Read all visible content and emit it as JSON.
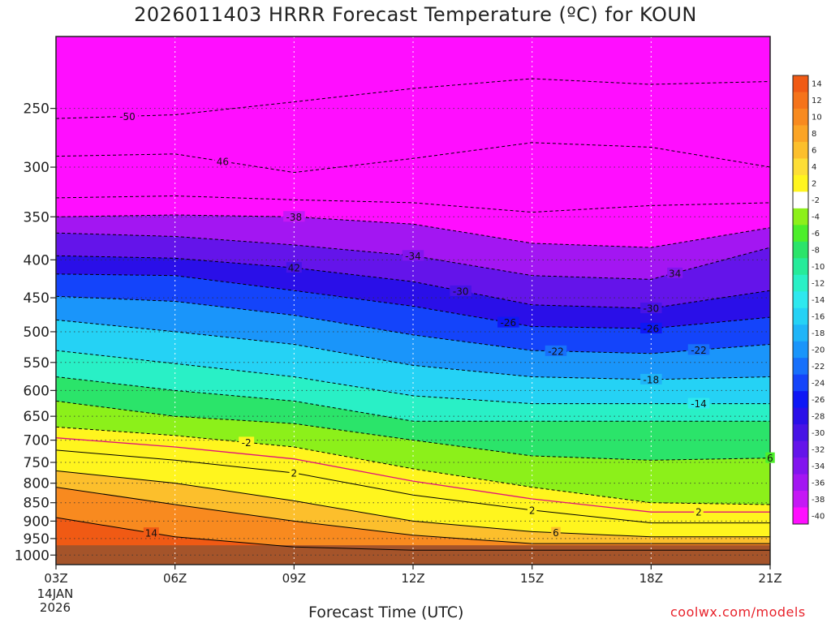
{
  "chart_data": {
    "type": "heatmap",
    "title": "2026011403 HRRR Forecast Temperature (ºC) for KOUN",
    "xlabel": "Forecast Time (UTC)",
    "ylabel": "",
    "x_ticks": [
      "03Z",
      "06Z",
      "09Z",
      "12Z",
      "15Z",
      "18Z",
      "21Z"
    ],
    "x_start_date": "14JAN",
    "x_start_year": "2026",
    "y_ticks": [
      250,
      300,
      350,
      400,
      450,
      500,
      550,
      600,
      650,
      700,
      750,
      800,
      850,
      900,
      950,
      1000
    ],
    "y_scale": "log",
    "y_reversed": true,
    "y_range": [
      200,
      1030
    ],
    "grid": true,
    "colorbar_labels": [
      14,
      12,
      10,
      8,
      6,
      4,
      2,
      -2,
      -4,
      -6,
      -8,
      -10,
      -12,
      -14,
      -16,
      -18,
      -20,
      -22,
      -24,
      -26,
      -28,
      -30,
      -32,
      -34,
      -36,
      -38,
      -40
    ],
    "colorbar_colors": [
      "#f05a14",
      "#f5731a",
      "#f88a1f",
      "#fba425",
      "#fcbf2c",
      "#fdde36",
      "#fff51e",
      "#ffffff",
      "#8cf01a",
      "#4cee2a",
      "#2be46a",
      "#26eb9a",
      "#29f0c6",
      "#2ee8ee",
      "#25d2f5",
      "#1fb5f8",
      "#1a95fa",
      "#1770fb",
      "#1444fa",
      "#0e17f5",
      "#2a0fe8",
      "#4713e6",
      "#6414ea",
      "#8214ee",
      "#a316f2",
      "#c518f5",
      "#ff0eff"
    ],
    "profiles": {
      "hours": [
        "03Z",
        "06Z",
        "09Z",
        "12Z",
        "15Z",
        "18Z",
        "21Z"
      ],
      "isotherms": [
        {
          "temp": -50,
          "pressure": [
            258,
            255,
            245,
            235,
            228,
            232,
            230
          ]
        },
        {
          "temp": -46,
          "pressure": [
            290,
            288,
            305,
            292,
            278,
            282,
            300
          ]
        },
        {
          "temp": -42,
          "pressure": [
            330,
            328,
            332,
            335,
            345,
            338,
            335
          ]
        },
        {
          "temp": -38,
          "pressure": [
            350,
            348,
            350,
            358,
            380,
            385,
            362
          ]
        },
        {
          "temp": -34,
          "pressure": [
            368,
            372,
            382,
            395,
            420,
            425,
            385
          ]
        },
        {
          "temp": -30,
          "pressure": [
            395,
            398,
            410,
            428,
            460,
            465,
            440
          ]
        },
        {
          "temp": -26,
          "pressure": [
            418,
            420,
            440,
            462,
            492,
            495,
            478
          ]
        },
        {
          "temp": -22,
          "pressure": [
            448,
            455,
            475,
            505,
            530,
            535,
            520
          ]
        },
        {
          "temp": -18,
          "pressure": [
            482,
            500,
            520,
            555,
            575,
            580,
            575
          ]
        },
        {
          "temp": -14,
          "pressure": [
            530,
            552,
            575,
            610,
            625,
            625,
            625
          ]
        },
        {
          "temp": -10,
          "pressure": [
            575,
            600,
            620,
            660,
            660,
            660,
            660
          ]
        },
        {
          "temp": -6,
          "pressure": [
            620,
            650,
            665,
            700,
            735,
            745,
            740
          ]
        },
        {
          "temp": -2,
          "pressure": [
            672,
            690,
            715,
            765,
            810,
            850,
            855
          ]
        },
        {
          "temp": 0,
          "pressure": [
            695,
            715,
            742,
            795,
            840,
            875,
            875
          ]
        },
        {
          "temp": 2,
          "pressure": [
            722,
            745,
            775,
            830,
            870,
            905,
            905
          ]
        },
        {
          "temp": 6,
          "pressure": [
            770,
            800,
            845,
            900,
            930,
            945,
            945
          ]
        },
        {
          "temp": 10,
          "pressure": [
            810,
            855,
            900,
            940,
            965,
            965,
            965
          ]
        },
        {
          "temp": 14,
          "pressure": [
            890,
            945,
            975,
            985,
            985,
            985,
            985
          ]
        }
      ],
      "surface_pressure": 970
    },
    "contour_labels": [
      "-50",
      "46",
      "-38",
      "42",
      "-34",
      "-30",
      "-26",
      "-22",
      "34",
      "-30",
      "-26",
      "-22",
      "-18",
      "-14",
      "-2",
      "6",
      "2",
      "2",
      "2",
      "6",
      "14"
    ]
  },
  "colors": {
    "ground": "#a5542a",
    "freezing_line": "#e0127a",
    "credit": "#e8222b"
  }
}
